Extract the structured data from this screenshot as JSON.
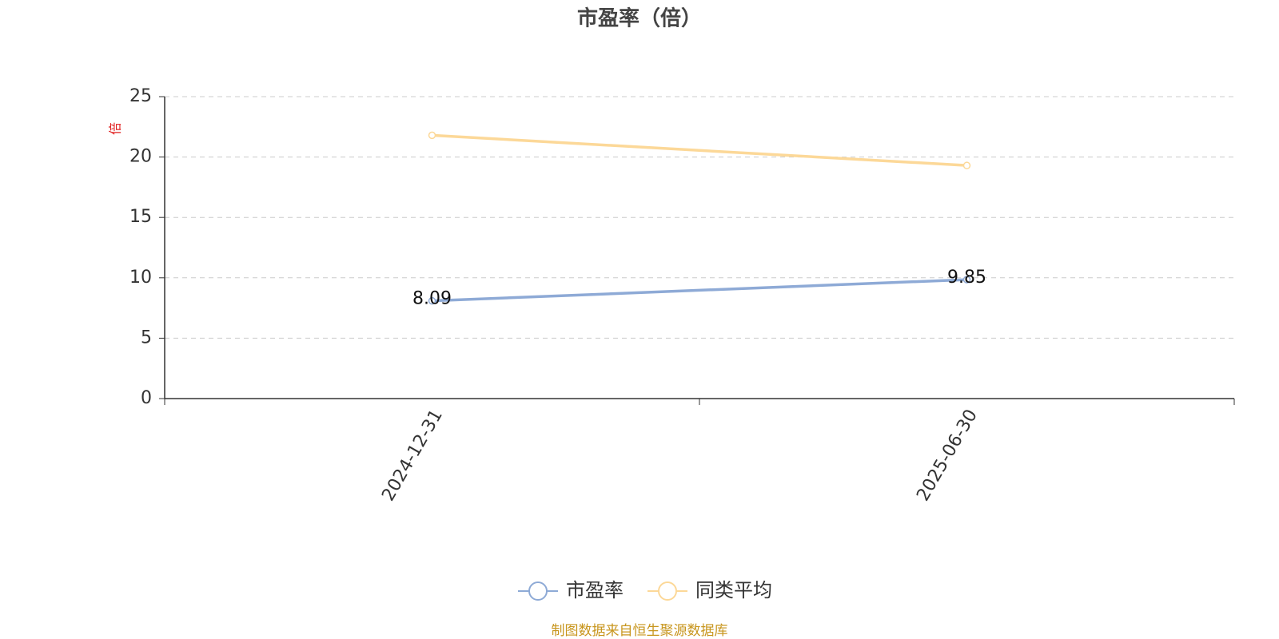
{
  "chart_data": {
    "type": "line",
    "title": "市盈率（倍）",
    "y_label": "倍",
    "categories": [
      "2024-12-31",
      "2025-06-30"
    ],
    "series": [
      {
        "name": "市盈率",
        "color": "#8eaad6",
        "values": [
          8.09,
          9.85
        ],
        "show_labels": true
      },
      {
        "name": "同类平均",
        "color": "#fcd898",
        "values": [
          21.8,
          19.3
        ],
        "show_labels": false
      }
    ],
    "ylim": [
      0,
      25
    ],
    "yticks": [
      0,
      5,
      10,
      15,
      20,
      25
    ],
    "grid": true,
    "legend": "bottom",
    "source": "制图数据来自恒生聚源数据库"
  }
}
